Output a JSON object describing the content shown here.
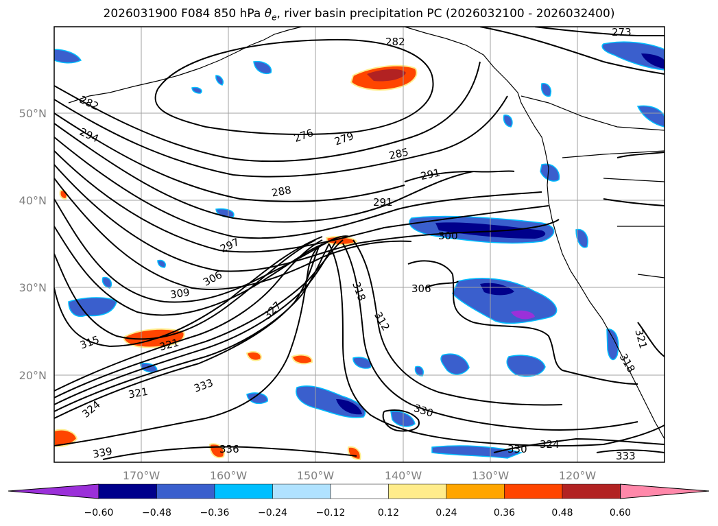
{
  "title": {
    "run": "2026031900",
    "forecast": "F084",
    "level": "850 hPa",
    "symbol": "θ",
    "symbol_sub": "e",
    "rest": ", river basin precipitation PC (2026032100 - 2026032400)"
  },
  "axes": {
    "lat_labels": [
      "50°N",
      "40°N",
      "30°N",
      "20°N"
    ],
    "lon_labels": [
      "170°W",
      "160°W",
      "150°W",
      "140°W",
      "130°W",
      "120°W"
    ]
  },
  "contour_labels": [
    {
      "id": "282-a",
      "text": "282"
    },
    {
      "id": "282-b",
      "text": "282"
    },
    {
      "id": "294",
      "text": "294"
    },
    {
      "id": "276",
      "text": "276"
    },
    {
      "id": "279",
      "text": "279"
    },
    {
      "id": "285",
      "text": "285"
    },
    {
      "id": "291-a",
      "text": "291"
    },
    {
      "id": "288",
      "text": "288"
    },
    {
      "id": "291-b",
      "text": "291"
    },
    {
      "id": "297",
      "text": "297"
    },
    {
      "id": "300",
      "text": "300"
    },
    {
      "id": "306-a",
      "text": "306"
    },
    {
      "id": "309",
      "text": "309"
    },
    {
      "id": "306-b",
      "text": "306"
    },
    {
      "id": "318-a",
      "text": "318"
    },
    {
      "id": "327",
      "text": "327"
    },
    {
      "id": "312",
      "text": "312"
    },
    {
      "id": "315",
      "text": "315"
    },
    {
      "id": "321-a",
      "text": "321"
    },
    {
      "id": "333-a",
      "text": "333"
    },
    {
      "id": "321-b",
      "text": "321"
    },
    {
      "id": "324-a",
      "text": "324"
    },
    {
      "id": "330-a",
      "text": "330"
    },
    {
      "id": "339",
      "text": "339"
    },
    {
      "id": "336",
      "text": "336"
    },
    {
      "id": "330-b",
      "text": "330"
    },
    {
      "id": "324-b",
      "text": "324"
    },
    {
      "id": "333-b",
      "text": "333"
    },
    {
      "id": "273",
      "text": "273"
    },
    {
      "id": "321-c",
      "text": "321"
    },
    {
      "id": "318-b",
      "text": "318"
    }
  ],
  "colorbar": {
    "ticks": [
      "−0.60",
      "−0.48",
      "−0.36",
      "−0.24",
      "−0.12",
      "0.12",
      "0.24",
      "0.36",
      "0.48",
      "0.60"
    ],
    "colors": [
      "#9b30d9",
      "#00008b",
      "#3a5fcd",
      "#00bfff",
      "#b0e2ff",
      "#ffffff",
      "#ffec8b",
      "#ffa500",
      "#ff4500",
      "#b22222",
      "#ff88aa"
    ]
  },
  "colors": {
    "contour": "#000000",
    "grid": "#a0a0a0",
    "tick_text": "#808080"
  }
}
